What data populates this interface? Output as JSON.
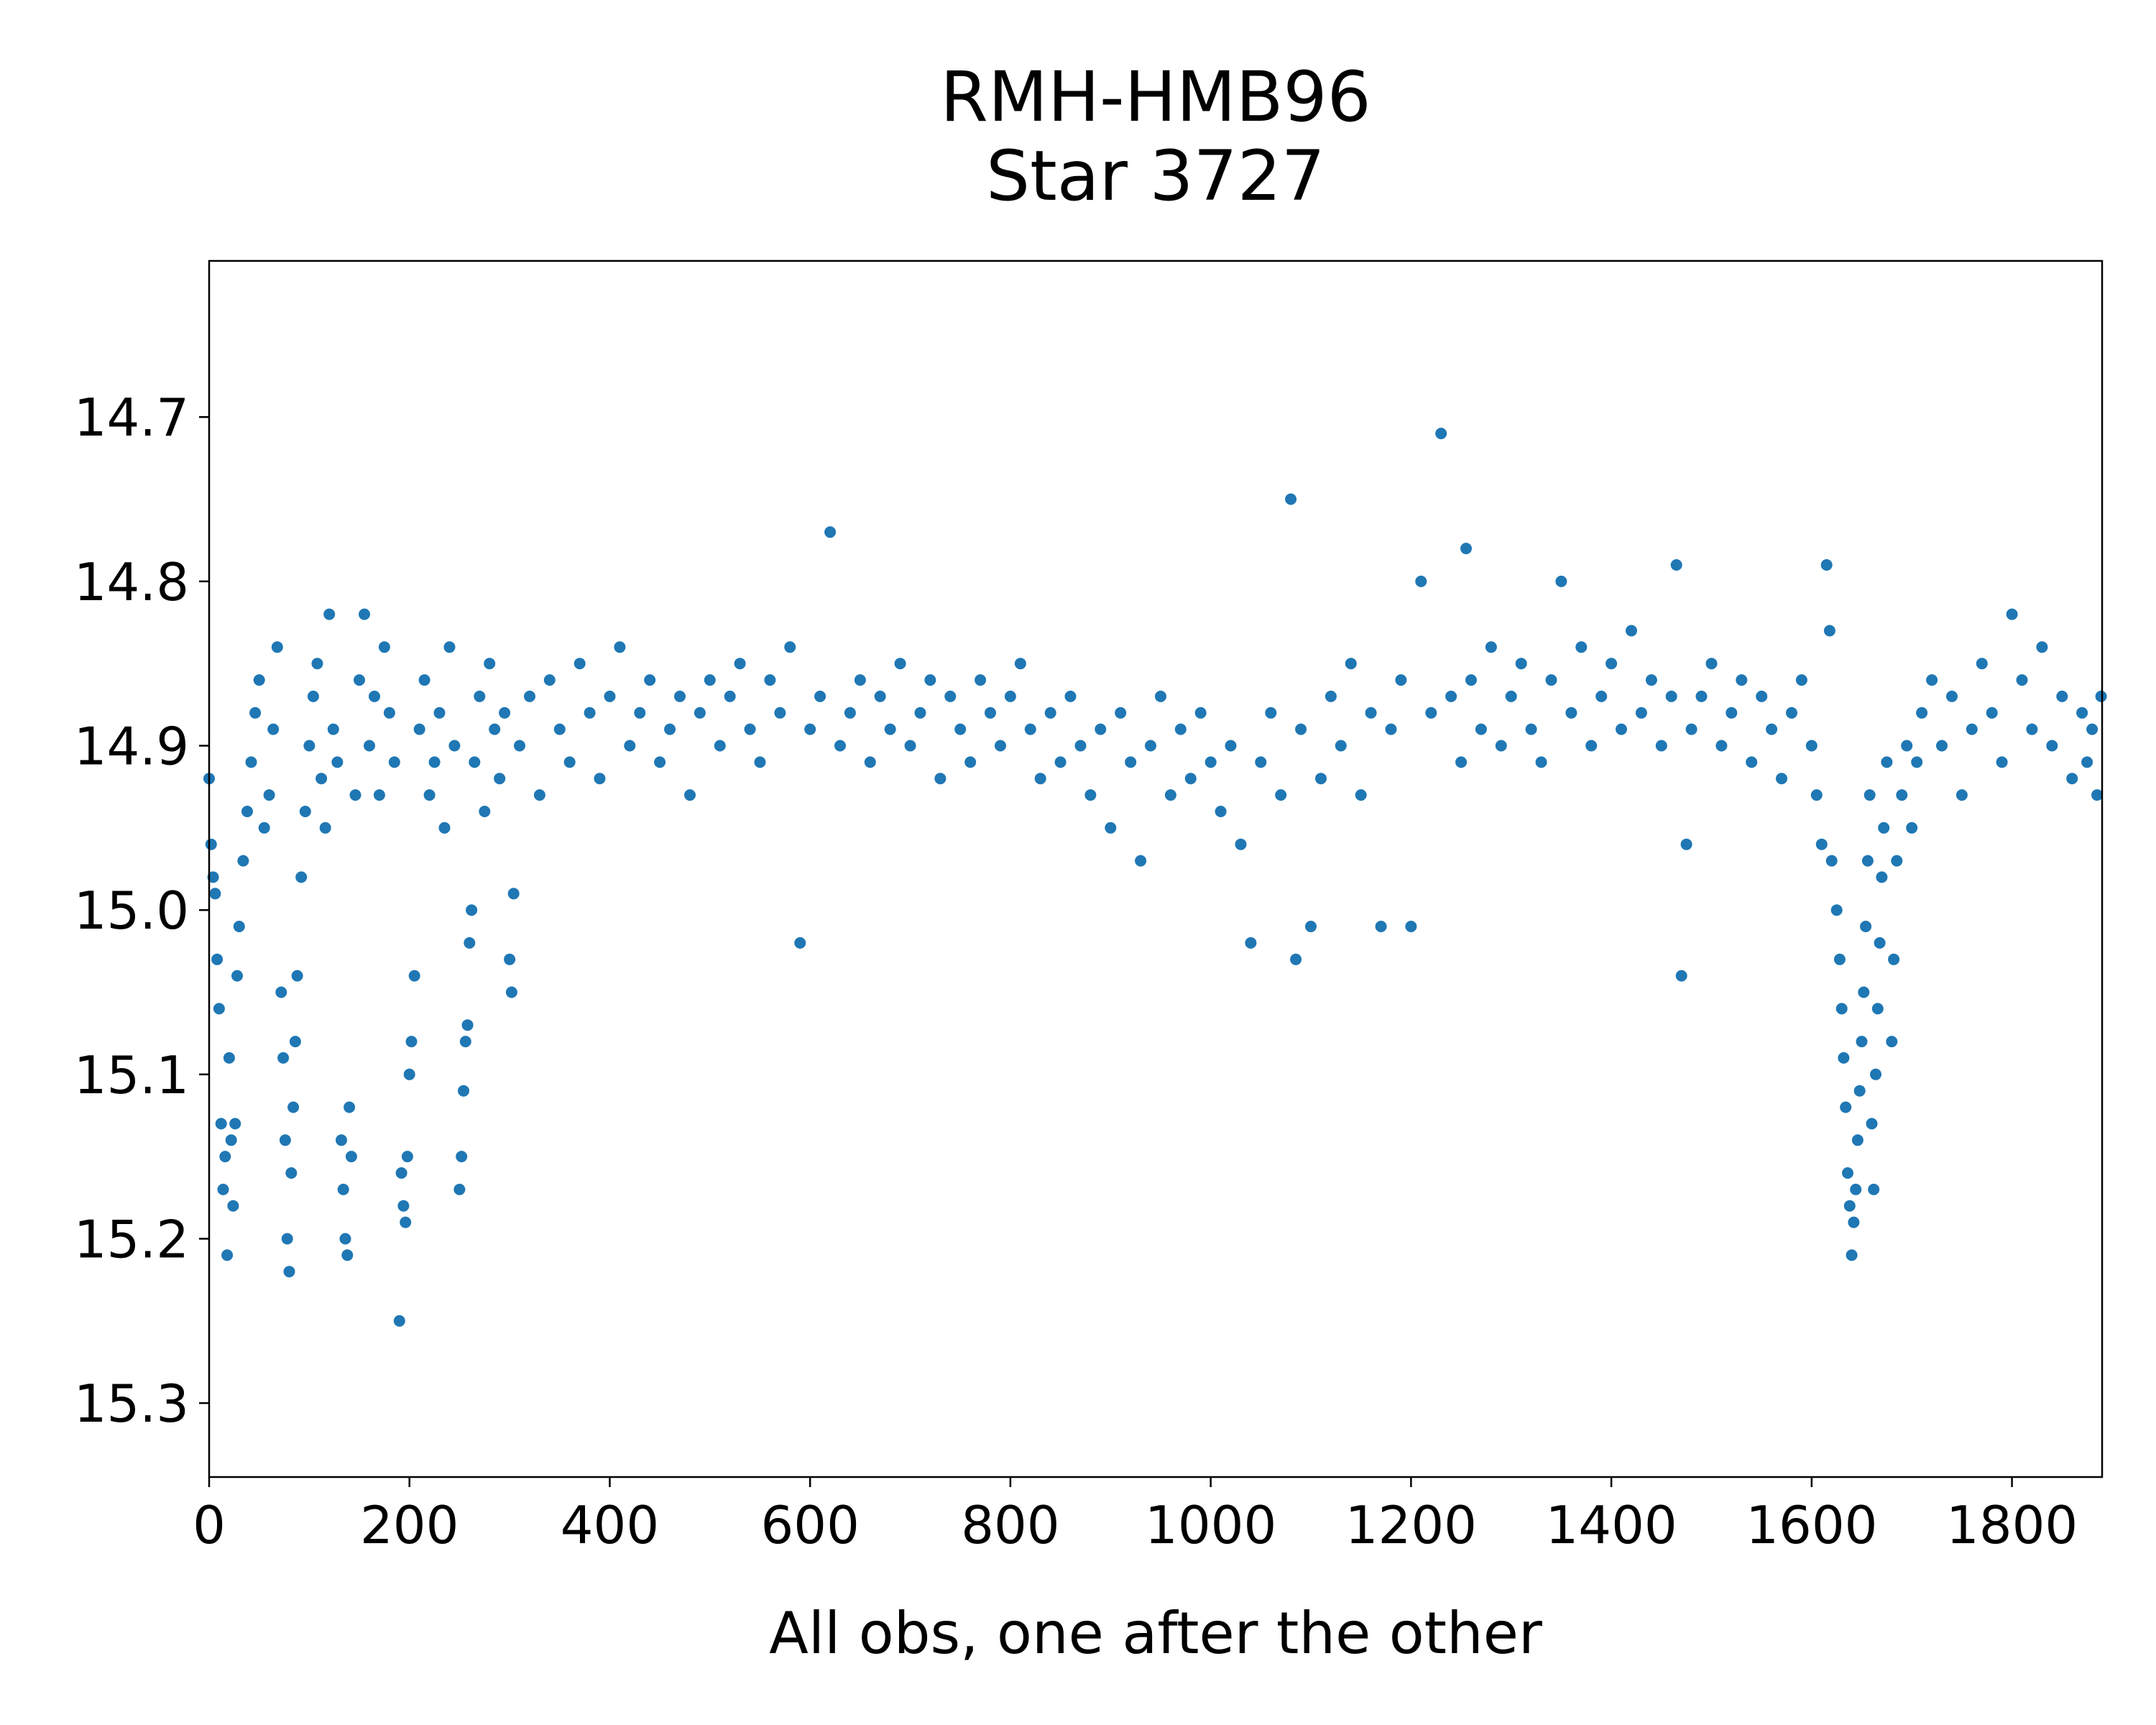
{
  "chart_data": {
    "type": "scatter",
    "title": [
      "RMH-HMB96",
      "Star 3727"
    ],
    "xlabel": "All obs, one after the other",
    "ylabel": "",
    "xlim": [
      0,
      1890
    ],
    "ylim": [
      15.345,
      14.605
    ],
    "y_inverted": true,
    "grid": false,
    "legend": "none",
    "marker_color": "#1f77b4",
    "xticks": [
      0,
      200,
      400,
      600,
      800,
      1000,
      1200,
      1400,
      1600,
      1800
    ],
    "xtick_labels": [
      "0",
      "200",
      "400",
      "600",
      "800",
      "1000",
      "1200",
      "1400",
      "1600",
      "1800"
    ],
    "yticks": [
      14.7,
      14.8,
      14.9,
      15.0,
      15.1,
      15.2,
      15.3
    ],
    "ytick_labels": [
      "14.7",
      "14.8",
      "14.9",
      "15.0",
      "15.1",
      "15.2",
      "15.3"
    ],
    "series": [
      {
        "points": [
          [
            0,
            14.92
          ],
          [
            2,
            14.96
          ],
          [
            4,
            14.98
          ],
          [
            6,
            14.99
          ],
          [
            8,
            15.03
          ],
          [
            10,
            15.06
          ],
          [
            12,
            15.13
          ],
          [
            14,
            15.17
          ],
          [
            16,
            15.15
          ],
          [
            18,
            15.21
          ],
          [
            20,
            15.09
          ],
          [
            22,
            15.14
          ],
          [
            24,
            15.18
          ],
          [
            26,
            15.13
          ],
          [
            28,
            15.04
          ],
          [
            30,
            15.01
          ],
          [
            34,
            14.97
          ],
          [
            38,
            14.94
          ],
          [
            42,
            14.91
          ],
          [
            46,
            14.88
          ],
          [
            50,
            14.86
          ],
          [
            55,
            14.95
          ],
          [
            60,
            14.93
          ],
          [
            64,
            14.89
          ],
          [
            68,
            14.84
          ],
          [
            72,
            15.05
          ],
          [
            74,
            15.09
          ],
          [
            76,
            15.14
          ],
          [
            78,
            15.2
          ],
          [
            80,
            15.22
          ],
          [
            82,
            15.16
          ],
          [
            84,
            15.12
          ],
          [
            86,
            15.08
          ],
          [
            88,
            15.04
          ],
          [
            92,
            14.98
          ],
          [
            96,
            14.94
          ],
          [
            100,
            14.9
          ],
          [
            104,
            14.87
          ],
          [
            108,
            14.85
          ],
          [
            112,
            14.92
          ],
          [
            116,
            14.95
          ],
          [
            120,
            14.82
          ],
          [
            124,
            14.89
          ],
          [
            128,
            14.91
          ],
          [
            132,
            15.14
          ],
          [
            134,
            15.17
          ],
          [
            136,
            15.2
          ],
          [
            138,
            15.21
          ],
          [
            140,
            15.12
          ],
          [
            142,
            15.15
          ],
          [
            146,
            14.93
          ],
          [
            150,
            14.86
          ],
          [
            155,
            14.82
          ],
          [
            160,
            14.9
          ],
          [
            165,
            14.87
          ],
          [
            170,
            14.93
          ],
          [
            175,
            14.84
          ],
          [
            180,
            14.88
          ],
          [
            185,
            14.91
          ],
          [
            190,
            15.25
          ],
          [
            192,
            15.16
          ],
          [
            194,
            15.18
          ],
          [
            196,
            15.19
          ],
          [
            198,
            15.15
          ],
          [
            200,
            15.1
          ],
          [
            202,
            15.08
          ],
          [
            205,
            15.04
          ],
          [
            210,
            14.89
          ],
          [
            215,
            14.86
          ],
          [
            220,
            14.93
          ],
          [
            225,
            14.91
          ],
          [
            230,
            14.88
          ],
          [
            235,
            14.95
          ],
          [
            240,
            14.84
          ],
          [
            245,
            14.9
          ],
          [
            250,
            15.17
          ],
          [
            252,
            15.15
          ],
          [
            254,
            15.11
          ],
          [
            256,
            15.08
          ],
          [
            258,
            15.07
          ],
          [
            260,
            15.02
          ],
          [
            262,
            15.0
          ],
          [
            265,
            14.91
          ],
          [
            270,
            14.87
          ],
          [
            275,
            14.94
          ],
          [
            280,
            14.85
          ],
          [
            285,
            14.89
          ],
          [
            290,
            14.92
          ],
          [
            295,
            14.88
          ],
          [
            300,
            15.03
          ],
          [
            302,
            15.05
          ],
          [
            304,
            14.99
          ],
          [
            310,
            14.9
          ],
          [
            320,
            14.87
          ],
          [
            330,
            14.93
          ],
          [
            340,
            14.86
          ],
          [
            350,
            14.89
          ],
          [
            360,
            14.91
          ],
          [
            370,
            14.85
          ],
          [
            380,
            14.88
          ],
          [
            390,
            14.92
          ],
          [
            400,
            14.87
          ],
          [
            410,
            14.84
          ],
          [
            420,
            14.9
          ],
          [
            430,
            14.88
          ],
          [
            440,
            14.86
          ],
          [
            450,
            14.91
          ],
          [
            460,
            14.89
          ],
          [
            470,
            14.87
          ],
          [
            480,
            14.93
          ],
          [
            490,
            14.88
          ],
          [
            500,
            14.86
          ],
          [
            510,
            14.9
          ],
          [
            520,
            14.87
          ],
          [
            530,
            14.85
          ],
          [
            540,
            14.89
          ],
          [
            550,
            14.91
          ],
          [
            560,
            14.86
          ],
          [
            570,
            14.88
          ],
          [
            580,
            14.84
          ],
          [
            590,
            15.02
          ],
          [
            600,
            14.89
          ],
          [
            610,
            14.87
          ],
          [
            620,
            14.77
          ],
          [
            630,
            14.9
          ],
          [
            640,
            14.88
          ],
          [
            650,
            14.86
          ],
          [
            660,
            14.91
          ],
          [
            670,
            14.87
          ],
          [
            680,
            14.89
          ],
          [
            690,
            14.85
          ],
          [
            700,
            14.9
          ],
          [
            710,
            14.88
          ],
          [
            720,
            14.86
          ],
          [
            730,
            14.92
          ],
          [
            740,
            14.87
          ],
          [
            750,
            14.89
          ],
          [
            760,
            14.91
          ],
          [
            770,
            14.86
          ],
          [
            780,
            14.88
          ],
          [
            790,
            14.9
          ],
          [
            800,
            14.87
          ],
          [
            810,
            14.85
          ],
          [
            820,
            14.89
          ],
          [
            830,
            14.92
          ],
          [
            840,
            14.88
          ],
          [
            850,
            14.91
          ],
          [
            860,
            14.87
          ],
          [
            870,
            14.9
          ],
          [
            880,
            14.93
          ],
          [
            890,
            14.89
          ],
          [
            900,
            14.95
          ],
          [
            910,
            14.88
          ],
          [
            920,
            14.91
          ],
          [
            930,
            14.97
          ],
          [
            940,
            14.9
          ],
          [
            950,
            14.87
          ],
          [
            960,
            14.93
          ],
          [
            970,
            14.89
          ],
          [
            980,
            14.92
          ],
          [
            990,
            14.88
          ],
          [
            1000,
            14.91
          ],
          [
            1010,
            14.94
          ],
          [
            1020,
            14.9
          ],
          [
            1030,
            14.96
          ],
          [
            1040,
            15.02
          ],
          [
            1050,
            14.91
          ],
          [
            1060,
            14.88
          ],
          [
            1070,
            14.93
          ],
          [
            1080,
            14.75
          ],
          [
            1085,
            15.03
          ],
          [
            1090,
            14.89
          ],
          [
            1100,
            15.01
          ],
          [
            1110,
            14.92
          ],
          [
            1120,
            14.87
          ],
          [
            1130,
            14.9
          ],
          [
            1140,
            14.85
          ],
          [
            1150,
            14.93
          ],
          [
            1160,
            14.88
          ],
          [
            1170,
            15.01
          ],
          [
            1180,
            14.89
          ],
          [
            1190,
            14.86
          ],
          [
            1200,
            15.01
          ],
          [
            1210,
            14.8
          ],
          [
            1220,
            14.88
          ],
          [
            1230,
            14.71
          ],
          [
            1240,
            14.87
          ],
          [
            1250,
            14.91
          ],
          [
            1255,
            14.78
          ],
          [
            1260,
            14.86
          ],
          [
            1270,
            14.89
          ],
          [
            1280,
            14.84
          ],
          [
            1290,
            14.9
          ],
          [
            1300,
            14.87
          ],
          [
            1310,
            14.85
          ],
          [
            1320,
            14.89
          ],
          [
            1330,
            14.91
          ],
          [
            1340,
            14.86
          ],
          [
            1350,
            14.8
          ],
          [
            1360,
            14.88
          ],
          [
            1370,
            14.84
          ],
          [
            1380,
            14.9
          ],
          [
            1390,
            14.87
          ],
          [
            1400,
            14.85
          ],
          [
            1410,
            14.89
          ],
          [
            1420,
            14.83
          ],
          [
            1430,
            14.88
          ],
          [
            1440,
            14.86
          ],
          [
            1450,
            14.9
          ],
          [
            1460,
            14.87
          ],
          [
            1465,
            14.79
          ],
          [
            1470,
            15.04
          ],
          [
            1475,
            14.96
          ],
          [
            1480,
            14.89
          ],
          [
            1490,
            14.87
          ],
          [
            1500,
            14.85
          ],
          [
            1510,
            14.9
          ],
          [
            1520,
            14.88
          ],
          [
            1530,
            14.86
          ],
          [
            1540,
            14.91
          ],
          [
            1550,
            14.87
          ],
          [
            1560,
            14.89
          ],
          [
            1570,
            14.92
          ],
          [
            1580,
            14.88
          ],
          [
            1590,
            14.86
          ],
          [
            1600,
            14.9
          ],
          [
            1605,
            14.93
          ],
          [
            1610,
            14.96
          ],
          [
            1615,
            14.79
          ],
          [
            1618,
            14.83
          ],
          [
            1620,
            14.97
          ],
          [
            1625,
            15.0
          ],
          [
            1628,
            15.03
          ],
          [
            1630,
            15.06
          ],
          [
            1632,
            15.09
          ],
          [
            1634,
            15.12
          ],
          [
            1636,
            15.16
          ],
          [
            1638,
            15.18
          ],
          [
            1640,
            15.21
          ],
          [
            1642,
            15.19
          ],
          [
            1644,
            15.17
          ],
          [
            1646,
            15.14
          ],
          [
            1648,
            15.11
          ],
          [
            1650,
            15.08
          ],
          [
            1652,
            15.05
          ],
          [
            1654,
            15.01
          ],
          [
            1656,
            14.97
          ],
          [
            1658,
            14.93
          ],
          [
            1660,
            15.13
          ],
          [
            1662,
            15.17
          ],
          [
            1664,
            15.1
          ],
          [
            1666,
            15.06
          ],
          [
            1668,
            15.02
          ],
          [
            1670,
            14.98
          ],
          [
            1672,
            14.95
          ],
          [
            1675,
            14.91
          ],
          [
            1680,
            15.08
          ],
          [
            1682,
            15.03
          ],
          [
            1685,
            14.97
          ],
          [
            1690,
            14.93
          ],
          [
            1695,
            14.9
          ],
          [
            1700,
            14.95
          ],
          [
            1705,
            14.91
          ],
          [
            1710,
            14.88
          ],
          [
            1720,
            14.86
          ],
          [
            1730,
            14.9
          ],
          [
            1740,
            14.87
          ],
          [
            1750,
            14.93
          ],
          [
            1760,
            14.89
          ],
          [
            1770,
            14.85
          ],
          [
            1780,
            14.88
          ],
          [
            1790,
            14.91
          ],
          [
            1800,
            14.82
          ],
          [
            1810,
            14.86
          ],
          [
            1820,
            14.89
          ],
          [
            1830,
            14.84
          ],
          [
            1840,
            14.9
          ],
          [
            1850,
            14.87
          ],
          [
            1860,
            14.92
          ],
          [
            1870,
            14.88
          ],
          [
            1875,
            14.91
          ],
          [
            1880,
            14.89
          ],
          [
            1885,
            14.93
          ],
          [
            1889,
            14.87
          ]
        ]
      }
    ]
  }
}
